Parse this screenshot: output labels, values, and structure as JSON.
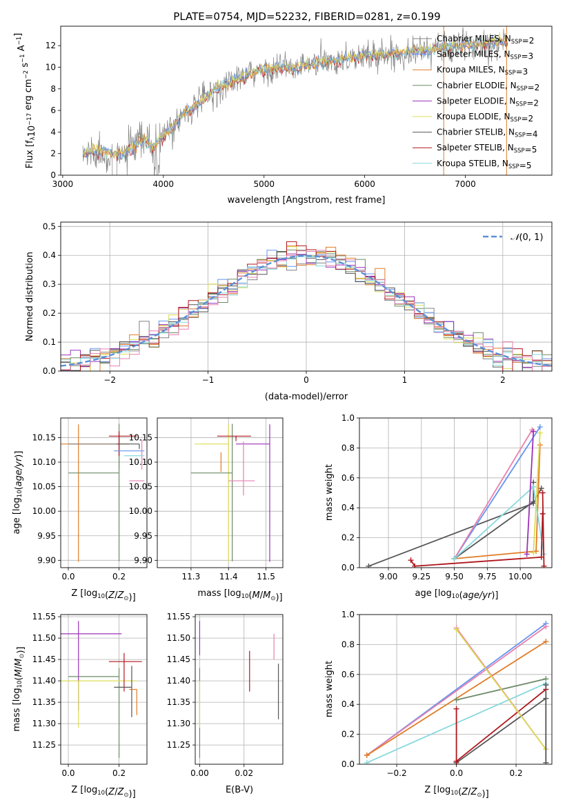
{
  "figure_title": "PLATE=0754, MJD=52232, FIBERID=0281, z=0.199",
  "colors": {
    "Chabrier MILES": "#808080",
    "Salpeter MILES": "#6495ed",
    "Kroupa MILES": "#e07b25",
    "Chabrier ELODIE": "#6a8a66",
    "Salpeter ELODIE": "#9b30b8",
    "Kroupa ELODIE": "#dcdc55",
    "Chabrier STELIB": "#555555",
    "Salpeter STELIB": "#b0151c",
    "Kroupa STELIB": "#85d8dd",
    "extra": "#e87fb0",
    "gauss": "#5b8fd6",
    "grid": "#b0b0b0"
  },
  "chart_data": [
    {
      "id": "spectrum",
      "type": "line",
      "title": "PLATE=0754, MJD=52232, FIBERID=0281, z=0.199",
      "xlabel": "wavelength [Angstrom, rest frame]",
      "ylabel": "Flux [f_λ 10^-17 erg cm^-2 s^-1 A^-1]",
      "xlim": [
        2980,
        7860
      ],
      "ylim": [
        0,
        13.8
      ],
      "xticks": [
        3000,
        4000,
        5000,
        6000,
        7000
      ],
      "yticks": [
        0,
        2,
        4,
        6,
        8,
        10,
        12
      ],
      "grid": false,
      "legend_loc": "upper right",
      "legend": [
        "Chabrier MILES, N_SSP=2",
        "Salpeter MILES, N_SSP=3",
        "Kroupa MILES, N_SSP=3",
        "Chabrier ELODIE, N_SSP=2",
        "Salpeter ELODIE, N_SSP=2",
        "Kroupa ELODIE, N_SSP=2",
        "Chabrier STELIB, N_SSP=4",
        "Salpeter STELIB, N_SSP=5",
        "Kroupa STELIB, N_SSP=5"
      ],
      "observed_x": [
        3200,
        3300,
        3400,
        3500,
        3600,
        3700,
        3800,
        3900,
        4000,
        4100,
        4200,
        4300,
        4400,
        4500,
        4600,
        4700,
        4800,
        4900,
        5000,
        5100,
        5200,
        5300,
        5400,
        5500,
        5600,
        5700,
        5800,
        5900,
        6000,
        6100,
        6200,
        6300,
        6400,
        6500,
        6600,
        6700,
        6800,
        6900,
        7000,
        7100,
        7200,
        7300,
        7400
      ],
      "observed_y": [
        1.9,
        2.2,
        2.2,
        2.0,
        2.0,
        2.5,
        3.3,
        2.6,
        3.6,
        4.5,
        5.8,
        6.2,
        7.0,
        7.8,
        8.3,
        8.8,
        9.0,
        9.5,
        9.7,
        9.9,
        10.0,
        9.8,
        10.1,
        10.3,
        10.4,
        10.6,
        10.8,
        10.9,
        11.0,
        11.1,
        11.2,
        11.2,
        11.4,
        11.5,
        11.6,
        11.7,
        11.8,
        11.9,
        12.0,
        12.1,
        12.2,
        12.3,
        12.3
      ]
    },
    {
      "id": "residuals",
      "type": "line",
      "xlabel": "(data-model)/error",
      "ylabel": "Normed distribution",
      "xlim": [
        -2.5,
        2.5
      ],
      "ylim": [
        0,
        0.515
      ],
      "xticks": [
        -2,
        -1,
        0,
        1,
        2
      ],
      "yticks": [
        0.0,
        0.1,
        0.2,
        0.3,
        0.4,
        0.5
      ],
      "grid": true,
      "legend_loc": "upper right",
      "legend": [
        "𝒩(0,1)"
      ],
      "bin_width": 0.1
    },
    {
      "id": "age-vs-Z",
      "type": "scatter",
      "xlabel": "Z [log10(Z/Z⊙)]",
      "ylabel": "age  [log10(age/yr)]",
      "xlim": [
        -0.03,
        0.31
      ],
      "ylim": [
        9.885,
        10.19
      ],
      "xticks": [
        0.0,
        0.2
      ],
      "yticks": [
        9.9,
        9.95,
        10.0,
        10.05,
        10.1,
        10.15
      ],
      "grid": true,
      "series": [
        {
          "color": "#e07b25",
          "x": 0.04,
          "xerr": [
            0.1,
            0.2
          ],
          "y": 10.137,
          "yerr": [
            0.24,
            0.04
          ]
        },
        {
          "color": "#808080",
          "x": 0.2,
          "xerr": [
            0.2,
            0.0
          ],
          "y": 10.137,
          "yerr": [
            0.05,
            0.02
          ]
        },
        {
          "color": "#6a8a66",
          "x": 0.2,
          "xerr": [
            0.2,
            0.0
          ],
          "y": 10.078,
          "yerr": [
            0.18,
            0.1
          ]
        },
        {
          "color": "#b0151c",
          "x": 0.2,
          "xerr": [
            0.04,
            0.07
          ],
          "y": 10.153,
          "yerr": [
            0.04,
            0.01
          ]
        },
        {
          "color": "#555555",
          "x": 0.28,
          "xerr": [
            0.09,
            0.0
          ],
          "y": 10.137,
          "yerr": [
            0.01,
            0.0
          ]
        },
        {
          "color": "#e87fb0",
          "x": 0.29,
          "xerr": [
            0.01,
            0.0
          ],
          "y": 10.145,
          "yerr": [
            0.06,
            0.0
          ]
        },
        {
          "color": "#6495ed",
          "x": 0.26,
          "xerr": [
            0.08,
            0.04
          ],
          "y": 10.123,
          "yerr": [
            0.0,
            0.0
          ]
        },
        {
          "color": "#85d8dd",
          "x": 0.28,
          "xerr": [
            0.06,
            0.02
          ],
          "y": 10.113,
          "yerr": [
            0.0,
            0.0
          ]
        },
        {
          "color": "#e87fb0",
          "x": 0.3,
          "xerr": [
            0.06,
            0.0
          ],
          "y": 10.062,
          "yerr": [
            0.0,
            0.0
          ]
        }
      ]
    },
    {
      "id": "age-vs-mass",
      "type": "scatter",
      "xlabel": "mass [log10(M/M⊙)]",
      "ylabel": "",
      "xlim": [
        11.21,
        11.545
      ],
      "ylim": [
        9.885,
        10.19
      ],
      "xticks": [
        11.3,
        11.4,
        11.5
      ],
      "yticks": [
        9.9,
        9.95,
        10.0,
        10.05,
        10.1,
        10.15
      ],
      "grid": true,
      "series": [
        {
          "color": "#dcdc55",
          "x": 11.4,
          "xerr": [
            0.09,
            0.0
          ],
          "y": 10.137,
          "yerr": [
            0.24,
            0.04
          ]
        },
        {
          "color": "#6a8a66",
          "x": 11.41,
          "xerr": [
            0.11,
            0.0
          ],
          "y": 10.078,
          "yerr": [
            0.18,
            0.1
          ]
        },
        {
          "color": "#9b30b8",
          "x": 11.51,
          "xerr": [
            0.09,
            0.0
          ],
          "y": 10.137,
          "yerr": [
            0.24,
            0.04
          ]
        },
        {
          "color": "#b0151c",
          "x": 11.42,
          "xerr": [
            0.05,
            0.04
          ],
          "y": 10.153,
          "yerr": [
            0.01,
            0.0
          ]
        },
        {
          "color": "#e07b25",
          "x": 11.38,
          "xerr": [
            0.0,
            0.0
          ],
          "y": 10.12,
          "yerr": [
            0.04,
            0.0
          ]
        },
        {
          "color": "#e87fb0",
          "x": 11.44,
          "xerr": [
            0.04,
            0.03
          ],
          "y": 10.062,
          "yerr": [
            0.03,
            0.08
          ]
        },
        {
          "color": "#6495ed",
          "x": 11.37,
          "xerr": [
            0.0,
            0.0
          ],
          "y": 10.123,
          "yerr": [
            0.0,
            0.0
          ]
        }
      ]
    },
    {
      "id": "mass-vs-Z",
      "type": "scatter",
      "xlabel": "Z [log10(Z/Z⊙)]",
      "ylabel": "mass [log10(M/M⊙)]",
      "xlim": [
        -0.03,
        0.31
      ],
      "ylim": [
        11.205,
        11.555
      ],
      "xticks": [
        0.0,
        0.2
      ],
      "yticks": [
        11.25,
        11.3,
        11.35,
        11.4,
        11.45,
        11.5,
        11.55
      ],
      "grid": true,
      "series": [
        {
          "color": "#9b30b8",
          "x": 0.04,
          "xerr": [
            0.1,
            0.17
          ],
          "y": 11.51,
          "yerr": [
            0.18,
            0.03
          ]
        },
        {
          "color": "#6a8a66",
          "x": 0.2,
          "xerr": [
            0.2,
            0.0
          ],
          "y": 11.41,
          "yerr": [
            0.19,
            0.02
          ]
        },
        {
          "color": "#dcdc55",
          "x": 0.04,
          "xerr": [
            0.1,
            0.23
          ],
          "y": 11.4,
          "yerr": [
            0.11,
            0.0
          ]
        },
        {
          "color": "#b0151c",
          "x": 0.22,
          "xerr": [
            0.06,
            0.07
          ],
          "y": 11.445,
          "yerr": [
            0.07,
            0.02
          ]
        },
        {
          "color": "#555555",
          "x": 0.25,
          "xerr": [
            0.07,
            0.0
          ],
          "y": 11.385,
          "yerr": [
            0.07,
            0.05
          ]
        },
        {
          "color": "#e07b25",
          "x": 0.27,
          "xerr": [
            0.03,
            0.0
          ],
          "y": 11.38,
          "yerr": [
            0.06,
            0.0
          ]
        }
      ]
    },
    {
      "id": "mass-vs-EBV",
      "type": "scatter",
      "xlabel": "E(B-V)",
      "ylabel": "",
      "xlim": [
        -0.002,
        0.0375
      ],
      "ylim": [
        11.205,
        11.555
      ],
      "xticks": [
        0.0,
        0.02
      ],
      "xticklabels": [
        "0.00",
        "0.02"
      ],
      "yticks": [
        11.25,
        11.3,
        11.35,
        11.4,
        11.45,
        11.5,
        11.55
      ],
      "grid": true,
      "series": [
        {
          "color": "#9b30b8",
          "x": 0.0,
          "y": 11.51,
          "yerr": [
            0.05,
            0.03
          ]
        },
        {
          "color": "#6a8a66",
          "x": 0.0,
          "y": 11.41,
          "yerr": [
            0.19,
            0.02
          ]
        },
        {
          "color": "#dcdc55",
          "x": 0.0,
          "y": 11.4,
          "yerr": [
            0.11,
            0.0
          ]
        },
        {
          "color": "#b0151c",
          "x": 0.0225,
          "y": 11.42,
          "yerr": [
            0.045,
            0.05
          ]
        },
        {
          "color": "#e87fb0",
          "x": 0.0335,
          "y": 11.475,
          "yerr": [
            0.025,
            0.035
          ]
        },
        {
          "color": "#555555",
          "x": 0.0355,
          "y": 11.375,
          "yerr": [
            0.065,
            0.065
          ]
        }
      ]
    },
    {
      "id": "mw-vs-age",
      "type": "line",
      "xlabel": "age  [log10(age/yr)]",
      "ylabel": "mass weight",
      "xlim": [
        8.78,
        10.24
      ],
      "ylim": [
        0,
        1
      ],
      "xticks": [
        9.0,
        9.25,
        9.5,
        9.75,
        10.0
      ],
      "xticklabels": [
        "9.00",
        "9.25",
        "9.50",
        "9.75",
        "10.00"
      ],
      "yticks": [
        0.0,
        0.2,
        0.4,
        0.6,
        0.8,
        1.0
      ],
      "grid": true,
      "series": [
        {
          "color": "#555555",
          "x": [
            8.85,
            10.1,
            10.16
          ],
          "y": [
            0.01,
            0.43,
            0.53
          ]
        },
        {
          "color": "#555555",
          "x": [
            9.5,
            10.1,
            10.1
          ],
          "y": [
            0.06,
            0.44,
            0.57
          ]
        },
        {
          "color": "#6495ed",
          "x": [
            9.5,
            10.15
          ],
          "y": [
            0.06,
            0.94
          ]
        },
        {
          "color": "#e87fb0",
          "x": [
            9.5,
            10.09
          ],
          "y": [
            0.06,
            0.92
          ]
        },
        {
          "color": "#e07b25",
          "x": [
            9.5,
            10.12,
            10.15
          ],
          "y": [
            0.06,
            0.11,
            0.82
          ]
        },
        {
          "color": "#85d8dd",
          "x": [
            9.5,
            10.1,
            10.18
          ],
          "y": [
            0.06,
            0.54,
            0.09
          ]
        },
        {
          "color": "#b0151c",
          "x": [
            9.17,
            9.2,
            10.16,
            10.17
          ],
          "y": [
            0.05,
            0.01,
            0.07,
            0.36
          ]
        },
        {
          "color": "#b0151c",
          "x": [
            10.17,
            10.18
          ],
          "y": [
            0.5,
            0.01
          ]
        },
        {
          "color": "#9b30b8",
          "x": [
            10.05,
            10.1
          ],
          "y": [
            0.09,
            0.91
          ]
        },
        {
          "color": "#dcdc55",
          "x": [
            10.1,
            10.15
          ],
          "y": [
            0.1,
            0.9
          ]
        }
      ]
    },
    {
      "id": "mw-vs-Z",
      "type": "line",
      "xlabel": "Z [log10(Z/Z⊙)]",
      "ylabel": "mass weight",
      "xlim": [
        -0.325,
        0.32
      ],
      "ylim": [
        0,
        1
      ],
      "xticks": [
        -0.2,
        0.0,
        0.2
      ],
      "xticklabels": [
        "−0.2",
        "0.0",
        "0.2"
      ],
      "yticks": [
        0.0,
        0.2,
        0.4,
        0.6,
        0.8,
        1.0
      ],
      "grid": true,
      "series": [
        {
          "color": "#6495ed",
          "x": [
            -0.3,
            0.3
          ],
          "y": [
            0.06,
            0.94
          ]
        },
        {
          "color": "#e87fb0",
          "x": [
            -0.3,
            0.3
          ],
          "y": [
            0.06,
            0.92
          ]
        },
        {
          "color": "#e07b25",
          "x": [
            -0.3,
            0.3
          ],
          "y": [
            0.06,
            0.82
          ]
        },
        {
          "color": "#6a8a66",
          "x": [
            0.0,
            0.3
          ],
          "y": [
            0.43,
            0.57
          ]
        },
        {
          "color": "#85d8dd",
          "x": [
            -0.3,
            0.3
          ],
          "y": [
            0.01,
            0.54
          ]
        },
        {
          "color": "#555555",
          "x": [
            0.0,
            0.3
          ],
          "y": [
            0.01,
            0.44
          ]
        },
        {
          "color": "#b0151c",
          "x": [
            0.0,
            0.3
          ],
          "y": [
            0.02,
            0.5
          ]
        },
        {
          "color": "#b0151c",
          "x": [
            0.0,
            0.0
          ],
          "y": [
            0.37,
            0.02
          ]
        },
        {
          "color": "#e87fb0",
          "x": [
            0.0,
            0.3
          ],
          "y": [
            0.91,
            0.1
          ]
        },
        {
          "color": "#dcdc55",
          "x": [
            0.0,
            0.3
          ],
          "y": [
            0.9,
            0.1
          ]
        },
        {
          "color": "#555555",
          "x": [
            0.3,
            0.3
          ],
          "y": [
            0.53,
            0.01
          ]
        }
      ]
    }
  ]
}
